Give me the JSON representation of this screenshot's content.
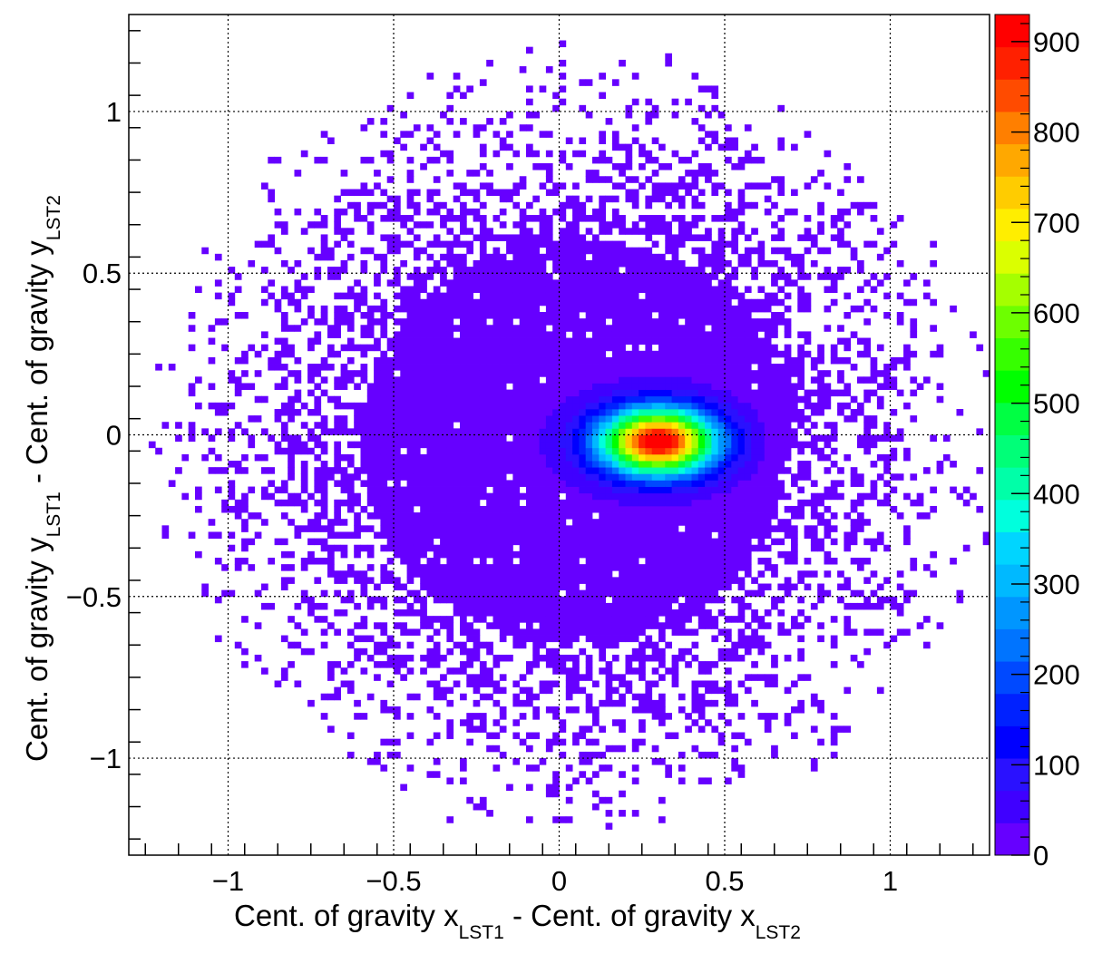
{
  "chart_data": {
    "type": "heatmap",
    "title": "",
    "xlabel": {
      "main": "Cent. of gravity x",
      "sub": "LST1",
      "mid": " - Cent. of gravity x",
      "sub2": "LST2"
    },
    "ylabel": {
      "main": "Cent. of gravity y",
      "sub": "LST1",
      "mid": " - Cent. of gravity y",
      "sub2": "LST2"
    },
    "xlim": [
      -1.3,
      1.3
    ],
    "ylim": [
      -1.3,
      1.3
    ],
    "zlim": [
      0,
      930
    ],
    "grid": true,
    "x_ticks": [
      {
        "value": -1,
        "label": "−1"
      },
      {
        "value": -0.5,
        "label": "−0.5"
      },
      {
        "value": 0,
        "label": "0"
      },
      {
        "value": 0.5,
        "label": "0.5"
      },
      {
        "value": 1,
        "label": "1"
      }
    ],
    "y_ticks": [
      {
        "value": 1,
        "label": "1"
      },
      {
        "value": 0.5,
        "label": "0.5"
      },
      {
        "value": 0,
        "label": "0"
      },
      {
        "value": -0.5,
        "label": "−0.5"
      },
      {
        "value": -1,
        "label": "−1"
      }
    ],
    "colorbar_ticks": [
      {
        "value": 0,
        "label": "0"
      },
      {
        "value": 100,
        "label": "100"
      },
      {
        "value": 200,
        "label": "200"
      },
      {
        "value": 300,
        "label": "300"
      },
      {
        "value": 400,
        "label": "400"
      },
      {
        "value": 500,
        "label": "500"
      },
      {
        "value": 600,
        "label": "600"
      },
      {
        "value": 700,
        "label": "700"
      },
      {
        "value": 800,
        "label": "800"
      },
      {
        "value": 900,
        "label": "900"
      }
    ],
    "colormap": [
      "#6600ff",
      "#3f00ff",
      "#2a11ff",
      "#0000ff",
      "#0021ff",
      "#0049ff",
      "#0074ff",
      "#0096ff",
      "#00b9ff",
      "#00d5ff",
      "#00ffdd",
      "#00ffa8",
      "#00ff78",
      "#00ff43",
      "#00ff00",
      "#36ff00",
      "#6dff00",
      "#a5ff00",
      "#dbff00",
      "#ffee00",
      "#ffcc00",
      "#ffa800",
      "#ff7f00",
      "#ff4b00",
      "#ff2000",
      "#ff0000"
    ],
    "distribution": {
      "description_free": true,
      "peak": {
        "x": 0.3,
        "y": -0.02,
        "value": 930
      },
      "core_sigma": {
        "x": 0.12,
        "y": 0.07
      },
      "bins": {
        "nx": 130,
        "ny": 130
      }
    }
  }
}
